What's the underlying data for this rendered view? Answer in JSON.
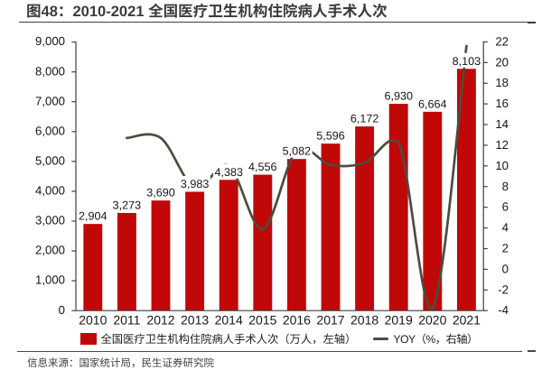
{
  "figure": {
    "number": "图48",
    "title": "图48：2010-2021 全国医疗卫生机构住院病人手术人次"
  },
  "chart_data": {
    "type": "bar",
    "title": "2010-2021 全国医疗卫生机构住院病人手术人次",
    "categories": [
      "2010",
      "2011",
      "2012",
      "2013",
      "2014",
      "2015",
      "2016",
      "2017",
      "2018",
      "2019",
      "2020",
      "2021"
    ],
    "series": [
      {
        "name": "全国医疗卫生机构住院病人手术人次（万人，左轴）",
        "type": "bar",
        "axis": "left",
        "color": "#c10808",
        "values": [
          2904,
          3273,
          3690,
          3983,
          4383,
          4556,
          5082,
          5596,
          6172,
          6930,
          6664,
          8103
        ],
        "data_labels": [
          "2,904",
          "3,273",
          "3,690",
          "3,983",
          "4,383",
          "4,556",
          "5,082",
          "5,596",
          "6,172",
          "6,930",
          "6,664",
          "8,103"
        ]
      },
      {
        "name": "YOY（%，右轴）",
        "type": "line",
        "axis": "right",
        "color": "#4b4d3e",
        "smooth": true,
        "values": [
          null,
          12.7,
          12.7,
          7.9,
          10.0,
          3.9,
          11.5,
          10.1,
          10.3,
          12.3,
          -3.8,
          21.6
        ]
      }
    ],
    "left_axis": {
      "min": 0,
      "max": 9000,
      "step": 1000,
      "tick_labels": [
        "0",
        "1,000",
        "2,000",
        "3,000",
        "4,000",
        "5,000",
        "6,000",
        "7,000",
        "8,000",
        "9,000"
      ]
    },
    "right_axis": {
      "min": -4,
      "max": 22,
      "step": 2,
      "tick_labels": [
        "-4",
        "-2",
        "0",
        "2",
        "4",
        "6",
        "8",
        "10",
        "12",
        "14",
        "16",
        "18",
        "20",
        "22"
      ]
    },
    "grid": false,
    "legend_position": "bottom",
    "xlabel": "",
    "ylabel": ""
  },
  "legend": {
    "bar_label": "全国医疗卫生机构住院病人手术人次（万人，左轴）",
    "line_label": "YOY（%，右轴）"
  },
  "footer": {
    "source": "信息来源：国家统计局，民生证券研究院"
  },
  "colors": {
    "bar": "#c10808",
    "line": "#4b4d3e",
    "axis": "#3f3f3f",
    "title_text": "#3b3b3b",
    "label_text": "#161616"
  }
}
